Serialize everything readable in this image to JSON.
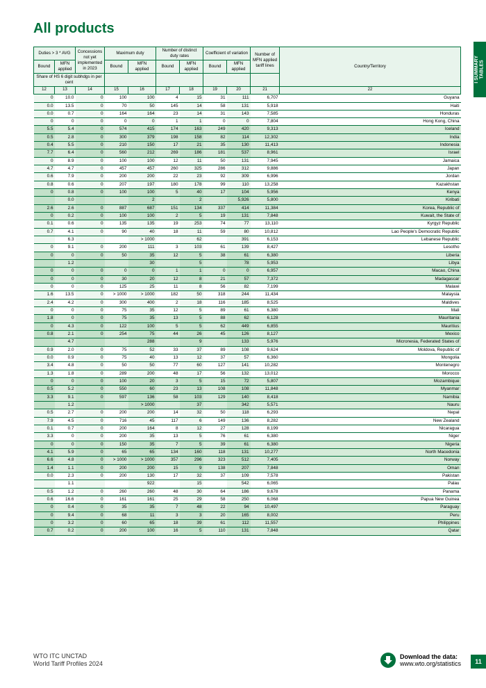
{
  "title": "All products",
  "side_tab": "I  SUMMARY\nTABLES",
  "footer": {
    "org": "WTO ITC UNCTAD",
    "pub": "World Tariff Profiles 2024",
    "download_label": "Download the data:",
    "download_url": "www.wto.org/statistics",
    "page": "11"
  },
  "headers": {
    "g1": "Duties > 3 * AVG",
    "g2": "Concessions not yet implemented in 2023",
    "g3": "Maximum duty",
    "g4": "Number of distinct duty rates",
    "g5": "Coefficient of variation",
    "g6": "Number of MFN applied tariff lines",
    "g7": "Country/Territory",
    "share": "Share of HS 6 digit subhdgs in per cent",
    "bound": "Bound",
    "mfn": "MFN applied"
  },
  "colnums": [
    "12",
    "13",
    "14",
    "15",
    "16",
    "17",
    "18",
    "19",
    "20",
    "21",
    "22"
  ],
  "alt_cols": [
    0,
    2,
    4,
    6,
    8
  ],
  "rows": [
    {
      "c": [
        "0",
        "10.0",
        "0",
        "100",
        "100",
        "4",
        "15",
        "31",
        "111",
        "6,707",
        "Guyana"
      ]
    },
    {
      "c": [
        "0.0",
        "13.5",
        "0",
        "70",
        "50",
        "145",
        "14",
        "58",
        "131",
        "5,918",
        "Haiti"
      ]
    },
    {
      "c": [
        "0.0",
        "0.7",
        "0",
        "164",
        "164",
        "23",
        "14",
        "31",
        "143",
        "7,585",
        "Honduras"
      ]
    },
    {
      "c": [
        "0",
        "0",
        "0",
        "0",
        "0",
        "1",
        "1",
        "0",
        "0",
        "7,804",
        "Hong Kong, China"
      ]
    },
    {
      "c": [
        "5.5",
        "5.4",
        "0",
        "574",
        "415",
        "174",
        "163",
        "249",
        "420",
        "9,313",
        "Iceland"
      ]
    },
    {
      "c": [
        "0.5",
        "2.8",
        "0",
        "300",
        "379",
        "198",
        "158",
        "82",
        "114",
        "12,302",
        "India"
      ]
    },
    {
      "c": [
        "0.4",
        "5.5",
        "0",
        "210",
        "150",
        "17",
        "21",
        "35",
        "130",
        "11,413",
        "Indonesia"
      ]
    },
    {
      "c": [
        "7.7",
        "6.4",
        "0",
        "560",
        "212",
        "269",
        "186",
        "181",
        "537",
        "8,961",
        "Israel"
      ]
    },
    {
      "c": [
        "0",
        "8.9",
        "0",
        "100",
        "100",
        "12",
        "11",
        "50",
        "131",
        "7,945",
        "Jamaica"
      ]
    },
    {
      "c": [
        "4.7",
        "4.7",
        "0",
        "457",
        "457",
        "260",
        "325",
        "286",
        "312",
        "9,886",
        "Japan"
      ]
    },
    {
      "c": [
        "0.6",
        "7.9",
        "0",
        "200",
        "200",
        "22",
        "23",
        "92",
        "309",
        "6,996",
        "Jordan"
      ]
    },
    {
      "c": [
        "0.8",
        "0.6",
        "0",
        "207",
        "197",
        "180",
        "178",
        "99",
        "110",
        "13,258",
        "Kazakhstan"
      ]
    },
    {
      "c": [
        "0",
        "0.8",
        "0",
        "100",
        "100",
        "5",
        "40",
        "17",
        "104",
        "5,956",
        "Kenya"
      ]
    },
    {
      "c": [
        "",
        "0.0",
        "",
        "",
        "2",
        "",
        "2",
        "",
        "5,926",
        "5,800",
        "Kiribati"
      ]
    },
    {
      "c": [
        "2.6",
        "2.6",
        "0",
        "887",
        "687",
        "151",
        "134",
        "337",
        "414",
        "11,384",
        "Korea, Republic of"
      ]
    },
    {
      "c": [
        "0",
        "0.2",
        "0",
        "100",
        "100",
        "2",
        "5",
        "19",
        "131",
        "7,848",
        "Kuwait, the State of"
      ]
    },
    {
      "c": [
        "0.1",
        "0.6",
        "0",
        "135",
        "135",
        "19",
        "253",
        "74",
        "77",
        "13,110",
        "Kyrgyz Republic"
      ]
    },
    {
      "c": [
        "0.7",
        "4.1",
        "0",
        "90",
        "40",
        "18",
        "11",
        "59",
        "80",
        "10,812",
        "Lao People's Democratic Republic"
      ]
    },
    {
      "c": [
        "",
        "6.3",
        "",
        "",
        "> 1000",
        "",
        "62",
        "",
        "391",
        "6,153",
        "Lebanese Republic"
      ]
    },
    {
      "c": [
        "0",
        "9.1",
        "0",
        "200",
        "111",
        "3",
        "103",
        "61",
        "139",
        "8,427",
        "Lesotho"
      ]
    },
    {
      "c": [
        "0",
        "0",
        "0",
        "50",
        "35",
        "12",
        "5",
        "38",
        "61",
        "6,380",
        "Liberia"
      ]
    },
    {
      "c": [
        "",
        "1.2",
        "",
        "",
        "30",
        "",
        "5",
        "",
        "78",
        "5,953",
        "Libya"
      ]
    },
    {
      "c": [
        "0",
        "0",
        "0",
        "0",
        "0",
        "1",
        "1",
        "0",
        "0",
        "6,957",
        "Macao, China"
      ]
    },
    {
      "c": [
        "0",
        "0",
        "0",
        "30",
        "20",
        "12",
        "8",
        "21",
        "57",
        "7,372",
        "Madagascar"
      ]
    },
    {
      "c": [
        "0",
        "0",
        "0",
        "125",
        "25",
        "11",
        "8",
        "56",
        "82",
        "7,199",
        "Malawi"
      ]
    },
    {
      "c": [
        "1.6",
        "13.5",
        "0",
        "> 1000",
        "> 1000",
        "182",
        "50",
        "318",
        "244",
        "11,434",
        "Malaysia"
      ]
    },
    {
      "c": [
        "2.4",
        "4.2",
        "0",
        "300",
        "400",
        "2",
        "18",
        "116",
        "185",
        "8,525",
        "Maldives"
      ]
    },
    {
      "c": [
        "0",
        "0",
        "0",
        "75",
        "35",
        "12",
        "5",
        "89",
        "61",
        "6,380",
        "Mali"
      ]
    },
    {
      "c": [
        "1.8",
        "0",
        "0",
        "75",
        "35",
        "13",
        "5",
        "88",
        "62",
        "6,128",
        "Mauritania"
      ]
    },
    {
      "c": [
        "0",
        "4.3",
        "0",
        "122",
        "100",
        "5",
        "5",
        "62",
        "449",
        "6,855",
        "Mauritius"
      ]
    },
    {
      "c": [
        "0.8",
        "2.1",
        "0",
        "254",
        "75",
        "44",
        "26",
        "45",
        "126",
        "8,127",
        "Mexico"
      ]
    },
    {
      "c": [
        "",
        "4.7",
        "",
        "",
        "288",
        "",
        "9",
        "",
        "133",
        "5,976",
        "Micronesia, Federated States of"
      ]
    },
    {
      "c": [
        "0.9",
        "2.0",
        "0",
        "75",
        "52",
        "33",
        "37",
        "89",
        "108",
        "9,624",
        "Moldova, Republic of"
      ]
    },
    {
      "c": [
        "0.0",
        "0.9",
        "0",
        "75",
        "40",
        "13",
        "12",
        "37",
        "57",
        "6,360",
        "Mongolia"
      ]
    },
    {
      "c": [
        "3.4",
        "4.8",
        "0",
        "50",
        "50",
        "77",
        "60",
        "127",
        "141",
        "10,282",
        "Montenegro"
      ]
    },
    {
      "c": [
        "1.3",
        "1.8",
        "0",
        "289",
        "200",
        "48",
        "17",
        "56",
        "132",
        "13,012",
        "Morocco"
      ]
    },
    {
      "c": [
        "0",
        "0",
        "0",
        "100",
        "20",
        "3",
        "5",
        "15",
        "72",
        "5,807",
        "Mozambique"
      ]
    },
    {
      "c": [
        "0.5",
        "5.2",
        "0",
        "550",
        "60",
        "23",
        "13",
        "108",
        "108",
        "11,848",
        "Myanmar"
      ]
    },
    {
      "c": [
        "3.3",
        "9.1",
        "0",
        "597",
        "136",
        "58",
        "103",
        "129",
        "140",
        "8,418",
        "Namibia"
      ]
    },
    {
      "c": [
        "",
        "1.2",
        "",
        "",
        "> 1000",
        "",
        "37",
        "",
        "342",
        "5,571",
        "Nauru"
      ]
    },
    {
      "c": [
        "0.5",
        "2.7",
        "0",
        "200",
        "200",
        "14",
        "32",
        "50",
        "118",
        "6,293",
        "Nepal"
      ]
    },
    {
      "c": [
        "7.9",
        "4.5",
        "0",
        "716",
        "45",
        "117",
        "6",
        "149",
        "136",
        "8,282",
        "New Zealand"
      ]
    },
    {
      "c": [
        "0.1",
        "0.7",
        "0",
        "200",
        "164",
        "8",
        "12",
        "27",
        "128",
        "8,199",
        "Nicaragua"
      ]
    },
    {
      "c": [
        "3.3",
        "0",
        "0",
        "200",
        "35",
        "13",
        "5",
        "76",
        "61",
        "6,380",
        "Niger"
      ]
    },
    {
      "c": [
        "0",
        "0",
        "0",
        "150",
        "35",
        "7",
        "5",
        "39",
        "61",
        "6,380",
        "Nigeria"
      ]
    },
    {
      "c": [
        "4.1",
        "5.9",
        "0",
        "65",
        "65",
        "134",
        "160",
        "118",
        "131",
        "10,277",
        "North Macedonia"
      ]
    },
    {
      "c": [
        "6.6",
        "4.8",
        "0",
        "> 1000",
        "> 1000",
        "357",
        "296",
        "323",
        "512",
        "7,405",
        "Norway"
      ]
    },
    {
      "c": [
        "1.4",
        "1.1",
        "0",
        "200",
        "200",
        "15",
        "9",
        "138",
        "207",
        "7,848",
        "Oman"
      ]
    },
    {
      "c": [
        "0.0",
        "2.3",
        "0",
        "200",
        "130",
        "17",
        "32",
        "37",
        "109",
        "7,578",
        "Pakistan"
      ]
    },
    {
      "c": [
        "",
        "1.1",
        "",
        "",
        "922",
        "",
        "15",
        "",
        "542",
        "6,065",
        "Palau"
      ]
    },
    {
      "c": [
        "0.5",
        "1.2",
        "0",
        "260",
        "260",
        "48",
        "30",
        "64",
        "186",
        "9,678",
        "Panama"
      ]
    },
    {
      "c": [
        "0.6",
        "16.6",
        "0",
        "161",
        "161",
        "25",
        "29",
        "58",
        "250",
        "6,068",
        "Papua New Guinea"
      ]
    },
    {
      "c": [
        "0",
        "0.4",
        "0",
        "35",
        "35",
        "7",
        "48",
        "22",
        "94",
        "10,497",
        "Paraguay"
      ]
    },
    {
      "c": [
        "0",
        "9.4",
        "0",
        "68",
        "11",
        "3",
        "3",
        "20",
        "165",
        "8,002",
        "Peru"
      ]
    },
    {
      "c": [
        "0",
        "3.2",
        "0",
        "60",
        "65",
        "18",
        "39",
        "61",
        "112",
        "11,557",
        "Philippines"
      ]
    },
    {
      "c": [
        "0.7",
        "0.2",
        "0",
        "200",
        "100",
        "16",
        "5",
        "110",
        "131",
        "7,848",
        "Qatar"
      ]
    }
  ]
}
